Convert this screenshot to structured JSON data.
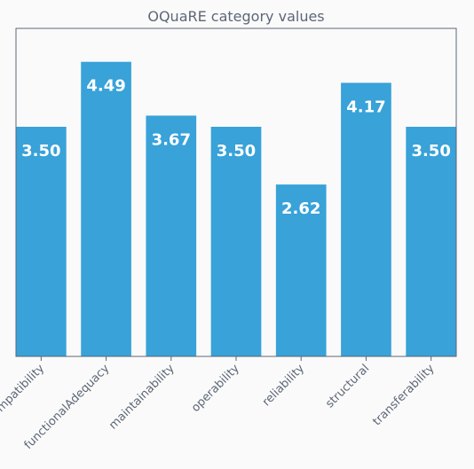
{
  "chart_data": {
    "type": "bar",
    "title": "OQuaRE category values",
    "xlabel": "",
    "ylabel": "",
    "categories": [
      "compatibility",
      "functionalAdequacy",
      "maintainability",
      "operability",
      "reliability",
      "structural",
      "transferability"
    ],
    "values": [
      3.5,
      4.49,
      3.67,
      3.5,
      2.62,
      4.17,
      3.5
    ],
    "value_labels": [
      "3.50",
      "4.49",
      "3.67",
      "3.50",
      "2.62",
      "4.17",
      "3.50"
    ],
    "ylim": [
      0,
      5.0
    ],
    "grid": false,
    "legend": "none",
    "colors": {
      "bar": "#38a2d9",
      "value_text": "#ffffff",
      "axis": "#5d6677",
      "background": "#fafafa"
    }
  }
}
